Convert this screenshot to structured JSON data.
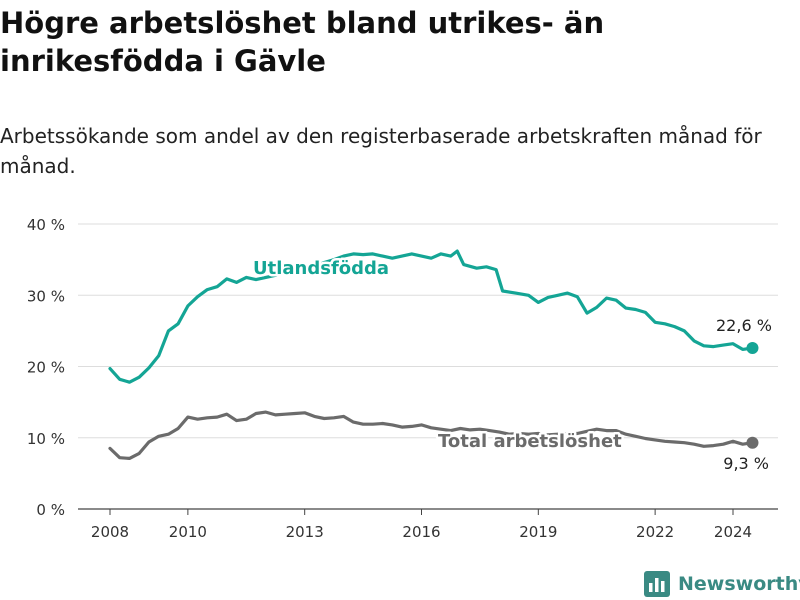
{
  "title": "Högre arbetslöshet bland utrikes- än inrikesfödda i Gävle",
  "subtitle": "Arbetssökande som andel av den registerbaserade arbetskraften månad för månad.",
  "brand": "Newsworthy",
  "colors": {
    "foreign": "#14a595",
    "total": "#6b6b6b",
    "brand": "#3a8a83"
  },
  "chart_data": {
    "type": "line",
    "title": "Högre arbetslöshet bland utrikes- än inrikesfödda i Gävle",
    "ylabel": "",
    "xlabel": "",
    "ylim": [
      0,
      40
    ],
    "yticks": [
      0,
      10,
      20,
      30,
      40
    ],
    "ytick_labels": [
      "0 %",
      "10 %",
      "20 %",
      "30 %",
      "40 %"
    ],
    "xlim": [
      "2008-01",
      "2025-06"
    ],
    "xticks": [
      "2008-01",
      "2010-01",
      "2013-01",
      "2016-01",
      "2019-01",
      "2022-01",
      "2024-01"
    ],
    "xtick_labels": [
      "2008",
      "2010",
      "2013",
      "2016",
      "2019",
      "2022",
      "2024"
    ],
    "grid": "horizontal",
    "series": [
      {
        "name": "Utlandsfödda",
        "color": "#14a595",
        "end_label": "22,6 %",
        "points": [
          [
            "2008-01",
            19.7
          ],
          [
            "2008-04",
            18.2
          ],
          [
            "2008-07",
            17.8
          ],
          [
            "2008-10",
            18.5
          ],
          [
            "2009-01",
            19.8
          ],
          [
            "2009-04",
            21.5
          ],
          [
            "2009-07",
            25.0
          ],
          [
            "2009-10",
            26.0
          ],
          [
            "2010-01",
            28.5
          ],
          [
            "2010-04",
            29.8
          ],
          [
            "2010-07",
            30.8
          ],
          [
            "2010-10",
            31.2
          ],
          [
            "2011-01",
            32.3
          ],
          [
            "2011-04",
            31.8
          ],
          [
            "2011-07",
            32.5
          ],
          [
            "2011-10",
            32.2
          ],
          [
            "2012-01",
            32.5
          ],
          [
            "2012-04",
            32.8
          ],
          [
            "2012-07",
            33.4
          ],
          [
            "2012-10",
            33.4
          ],
          [
            "2013-01",
            33.5
          ],
          [
            "2013-04",
            34.0
          ],
          [
            "2013-07",
            34.6
          ],
          [
            "2013-10",
            35.0
          ],
          [
            "2014-01",
            35.5
          ],
          [
            "2014-04",
            35.8
          ],
          [
            "2014-07",
            35.7
          ],
          [
            "2014-10",
            35.8
          ],
          [
            "2015-01",
            35.5
          ],
          [
            "2015-04",
            35.2
          ],
          [
            "2015-07",
            35.5
          ],
          [
            "2015-10",
            35.8
          ],
          [
            "2016-01",
            35.5
          ],
          [
            "2016-04",
            35.2
          ],
          [
            "2016-07",
            35.8
          ],
          [
            "2016-10",
            35.5
          ],
          [
            "2016-12",
            36.2
          ],
          [
            "2017-02",
            34.3
          ],
          [
            "2017-06",
            33.8
          ],
          [
            "2017-09",
            34.0
          ],
          [
            "2017-12",
            33.6
          ],
          [
            "2018-02",
            30.6
          ],
          [
            "2018-06",
            30.3
          ],
          [
            "2018-10",
            30.0
          ],
          [
            "2019-01",
            29.0
          ],
          [
            "2019-04",
            29.7
          ],
          [
            "2019-07",
            30.0
          ],
          [
            "2019-10",
            30.3
          ],
          [
            "2020-01",
            29.8
          ],
          [
            "2020-04",
            27.5
          ],
          [
            "2020-07",
            28.3
          ],
          [
            "2020-10",
            29.6
          ],
          [
            "2021-01",
            29.3
          ],
          [
            "2021-04",
            28.2
          ],
          [
            "2021-07",
            28.0
          ],
          [
            "2021-10",
            27.6
          ],
          [
            "2022-01",
            26.2
          ],
          [
            "2022-04",
            26.0
          ],
          [
            "2022-07",
            25.6
          ],
          [
            "2022-10",
            25.0
          ],
          [
            "2023-01",
            23.6
          ],
          [
            "2023-04",
            22.9
          ],
          [
            "2023-07",
            22.8
          ],
          [
            "2023-10",
            23.0
          ],
          [
            "2024-01",
            23.2
          ],
          [
            "2024-04",
            22.4
          ],
          [
            "2024-07",
            22.6
          ]
        ]
      },
      {
        "name": "Total arbetslöshet",
        "color": "#6b6b6b",
        "end_label": "9,3 %",
        "points": [
          [
            "2008-01",
            8.5
          ],
          [
            "2008-04",
            7.2
          ],
          [
            "2008-07",
            7.1
          ],
          [
            "2008-10",
            7.8
          ],
          [
            "2009-01",
            9.4
          ],
          [
            "2009-04",
            10.2
          ],
          [
            "2009-07",
            10.5
          ],
          [
            "2009-10",
            11.3
          ],
          [
            "2010-01",
            12.9
          ],
          [
            "2010-04",
            12.6
          ],
          [
            "2010-07",
            12.8
          ],
          [
            "2010-10",
            12.9
          ],
          [
            "2011-01",
            13.3
          ],
          [
            "2011-04",
            12.4
          ],
          [
            "2011-07",
            12.6
          ],
          [
            "2011-10",
            13.4
          ],
          [
            "2012-01",
            13.6
          ],
          [
            "2012-04",
            13.2
          ],
          [
            "2012-07",
            13.3
          ],
          [
            "2012-10",
            13.4
          ],
          [
            "2013-01",
            13.5
          ],
          [
            "2013-04",
            13.0
          ],
          [
            "2013-07",
            12.7
          ],
          [
            "2013-10",
            12.8
          ],
          [
            "2014-01",
            13.0
          ],
          [
            "2014-04",
            12.2
          ],
          [
            "2014-07",
            11.9
          ],
          [
            "2014-10",
            11.9
          ],
          [
            "2015-01",
            12.0
          ],
          [
            "2015-04",
            11.8
          ],
          [
            "2015-07",
            11.5
          ],
          [
            "2015-10",
            11.6
          ],
          [
            "2016-01",
            11.8
          ],
          [
            "2016-04",
            11.4
          ],
          [
            "2016-07",
            11.2
          ],
          [
            "2016-10",
            11.0
          ],
          [
            "2017-01",
            11.3
          ],
          [
            "2017-04",
            11.1
          ],
          [
            "2017-07",
            11.2
          ],
          [
            "2017-10",
            11.0
          ],
          [
            "2018-01",
            10.8
          ],
          [
            "2018-04",
            10.5
          ],
          [
            "2018-07",
            10.6
          ],
          [
            "2018-10",
            10.5
          ],
          [
            "2019-01",
            10.6
          ],
          [
            "2019-04",
            10.4
          ],
          [
            "2019-07",
            10.5
          ],
          [
            "2019-10",
            10.6
          ],
          [
            "2020-01",
            10.6
          ],
          [
            "2020-04",
            10.9
          ],
          [
            "2020-07",
            11.2
          ],
          [
            "2020-10",
            11.0
          ],
          [
            "2021-01",
            11.0
          ],
          [
            "2021-04",
            10.5
          ],
          [
            "2021-07",
            10.2
          ],
          [
            "2021-10",
            9.9
          ],
          [
            "2022-01",
            9.7
          ],
          [
            "2022-04",
            9.5
          ],
          [
            "2022-07",
            9.4
          ],
          [
            "2022-10",
            9.3
          ],
          [
            "2023-01",
            9.1
          ],
          [
            "2023-04",
            8.8
          ],
          [
            "2023-07",
            8.9
          ],
          [
            "2023-10",
            9.1
          ],
          [
            "2024-01",
            9.5
          ],
          [
            "2024-04",
            9.1
          ],
          [
            "2024-07",
            9.3
          ]
        ]
      }
    ]
  }
}
